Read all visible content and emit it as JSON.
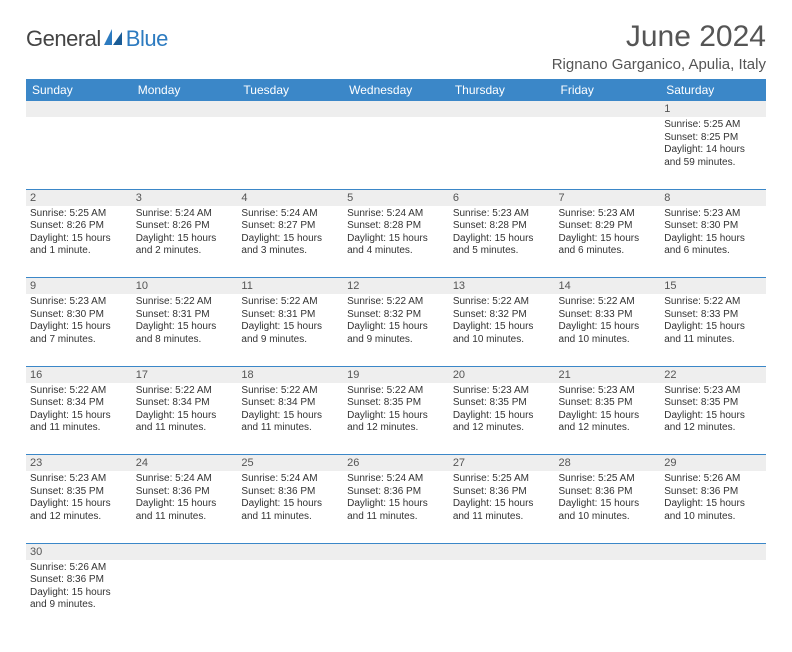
{
  "logo": {
    "text1": "General",
    "text2": "Blue"
  },
  "title": "June 2024",
  "location": "Rignano Garganico, Apulia, Italy",
  "colors": {
    "header_bg": "#3b87c8",
    "header_text": "#ffffff",
    "daynum_bg": "#eeeeee",
    "border": "#3b87c8",
    "title_color": "#555555",
    "body_text": "#333333"
  },
  "weekdays": [
    "Sunday",
    "Monday",
    "Tuesday",
    "Wednesday",
    "Thursday",
    "Friday",
    "Saturday"
  ],
  "weeks": [
    [
      null,
      null,
      null,
      null,
      null,
      null,
      {
        "n": 1,
        "sr": "5:25 AM",
        "ss": "8:25 PM",
        "dl": "14 hours and 59 minutes."
      }
    ],
    [
      {
        "n": 2,
        "sr": "5:25 AM",
        "ss": "8:26 PM",
        "dl": "15 hours and 1 minute."
      },
      {
        "n": 3,
        "sr": "5:24 AM",
        "ss": "8:26 PM",
        "dl": "15 hours and 2 minutes."
      },
      {
        "n": 4,
        "sr": "5:24 AM",
        "ss": "8:27 PM",
        "dl": "15 hours and 3 minutes."
      },
      {
        "n": 5,
        "sr": "5:24 AM",
        "ss": "8:28 PM",
        "dl": "15 hours and 4 minutes."
      },
      {
        "n": 6,
        "sr": "5:23 AM",
        "ss": "8:28 PM",
        "dl": "15 hours and 5 minutes."
      },
      {
        "n": 7,
        "sr": "5:23 AM",
        "ss": "8:29 PM",
        "dl": "15 hours and 6 minutes."
      },
      {
        "n": 8,
        "sr": "5:23 AM",
        "ss": "8:30 PM",
        "dl": "15 hours and 6 minutes."
      }
    ],
    [
      {
        "n": 9,
        "sr": "5:23 AM",
        "ss": "8:30 PM",
        "dl": "15 hours and 7 minutes."
      },
      {
        "n": 10,
        "sr": "5:22 AM",
        "ss": "8:31 PM",
        "dl": "15 hours and 8 minutes."
      },
      {
        "n": 11,
        "sr": "5:22 AM",
        "ss": "8:31 PM",
        "dl": "15 hours and 9 minutes."
      },
      {
        "n": 12,
        "sr": "5:22 AM",
        "ss": "8:32 PM",
        "dl": "15 hours and 9 minutes."
      },
      {
        "n": 13,
        "sr": "5:22 AM",
        "ss": "8:32 PM",
        "dl": "15 hours and 10 minutes."
      },
      {
        "n": 14,
        "sr": "5:22 AM",
        "ss": "8:33 PM",
        "dl": "15 hours and 10 minutes."
      },
      {
        "n": 15,
        "sr": "5:22 AM",
        "ss": "8:33 PM",
        "dl": "15 hours and 11 minutes."
      }
    ],
    [
      {
        "n": 16,
        "sr": "5:22 AM",
        "ss": "8:34 PM",
        "dl": "15 hours and 11 minutes."
      },
      {
        "n": 17,
        "sr": "5:22 AM",
        "ss": "8:34 PM",
        "dl": "15 hours and 11 minutes."
      },
      {
        "n": 18,
        "sr": "5:22 AM",
        "ss": "8:34 PM",
        "dl": "15 hours and 11 minutes."
      },
      {
        "n": 19,
        "sr": "5:22 AM",
        "ss": "8:35 PM",
        "dl": "15 hours and 12 minutes."
      },
      {
        "n": 20,
        "sr": "5:23 AM",
        "ss": "8:35 PM",
        "dl": "15 hours and 12 minutes."
      },
      {
        "n": 21,
        "sr": "5:23 AM",
        "ss": "8:35 PM",
        "dl": "15 hours and 12 minutes."
      },
      {
        "n": 22,
        "sr": "5:23 AM",
        "ss": "8:35 PM",
        "dl": "15 hours and 12 minutes."
      }
    ],
    [
      {
        "n": 23,
        "sr": "5:23 AM",
        "ss": "8:35 PM",
        "dl": "15 hours and 12 minutes."
      },
      {
        "n": 24,
        "sr": "5:24 AM",
        "ss": "8:36 PM",
        "dl": "15 hours and 11 minutes."
      },
      {
        "n": 25,
        "sr": "5:24 AM",
        "ss": "8:36 PM",
        "dl": "15 hours and 11 minutes."
      },
      {
        "n": 26,
        "sr": "5:24 AM",
        "ss": "8:36 PM",
        "dl": "15 hours and 11 minutes."
      },
      {
        "n": 27,
        "sr": "5:25 AM",
        "ss": "8:36 PM",
        "dl": "15 hours and 11 minutes."
      },
      {
        "n": 28,
        "sr": "5:25 AM",
        "ss": "8:36 PM",
        "dl": "15 hours and 10 minutes."
      },
      {
        "n": 29,
        "sr": "5:26 AM",
        "ss": "8:36 PM",
        "dl": "15 hours and 10 minutes."
      }
    ],
    [
      {
        "n": 30,
        "sr": "5:26 AM",
        "ss": "8:36 PM",
        "dl": "15 hours and 9 minutes."
      },
      null,
      null,
      null,
      null,
      null,
      null
    ]
  ],
  "labels": {
    "sunrise": "Sunrise:",
    "sunset": "Sunset:",
    "daylight": "Daylight:"
  }
}
